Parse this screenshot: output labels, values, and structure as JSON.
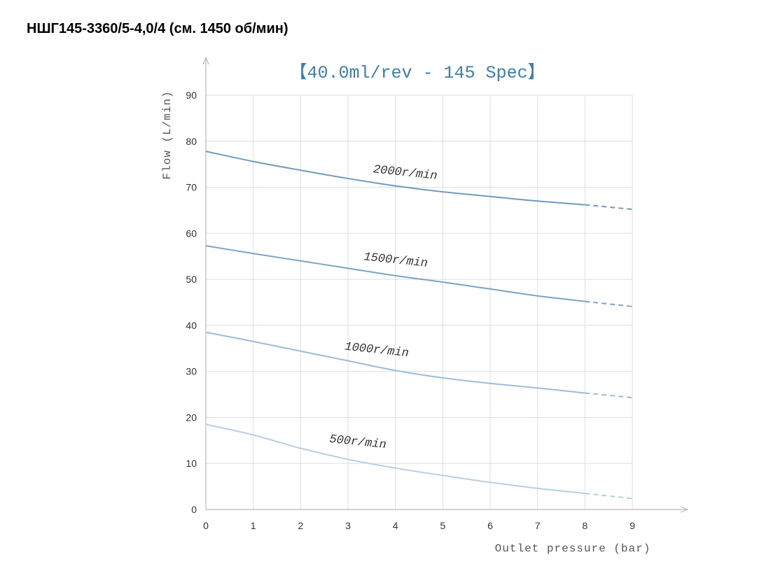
{
  "page": {
    "heading": "НШГ145-3360/5-4,0/4 (см. 1450 об/мин)"
  },
  "chart_data": {
    "type": "line",
    "title": "【40.0ml/rev - 145 Spec】",
    "xlabel": "Outlet pressure (bar)",
    "ylabel": "Flow (L/min)",
    "xlim": [
      0,
      9
    ],
    "ylim": [
      0,
      90
    ],
    "xticks": [
      0,
      1,
      2,
      3,
      4,
      5,
      6,
      7,
      8,
      9
    ],
    "yticks": [
      0,
      10,
      20,
      30,
      40,
      50,
      60,
      70,
      80,
      90
    ],
    "grid": true,
    "solid_until_x": 8,
    "x": [
      0,
      1,
      2,
      3,
      4,
      5,
      6,
      7,
      8,
      9
    ],
    "series": [
      {
        "name": "2000r/min",
        "color": "#6f9bbd",
        "values": [
          77.8,
          75.6,
          73.7,
          71.9,
          70.3,
          69.0,
          68.0,
          67.0,
          66.2,
          65.2
        ]
      },
      {
        "name": "1500r/min",
        "color": "#7ba5c7",
        "values": [
          57.3,
          55.6,
          54.0,
          52.4,
          50.8,
          49.4,
          47.9,
          46.4,
          45.2,
          44.1
        ]
      },
      {
        "name": "1000r/min",
        "color": "#9bbdd8",
        "values": [
          38.5,
          36.5,
          34.4,
          32.3,
          30.2,
          28.6,
          27.4,
          26.4,
          25.3,
          24.3
        ]
      },
      {
        "name": "500r/min",
        "color": "#b5cfe3",
        "values": [
          18.5,
          16.2,
          13.3,
          10.9,
          9.0,
          7.4,
          5.9,
          4.6,
          3.5,
          2.4
        ]
      }
    ],
    "label_positions_data": [
      {
        "x": 4.2,
        "y": 72.5
      },
      {
        "x": 4.0,
        "y": 53.5
      },
      {
        "x": 3.6,
        "y": 34.0
      },
      {
        "x": 3.2,
        "y": 14.0
      }
    ]
  }
}
